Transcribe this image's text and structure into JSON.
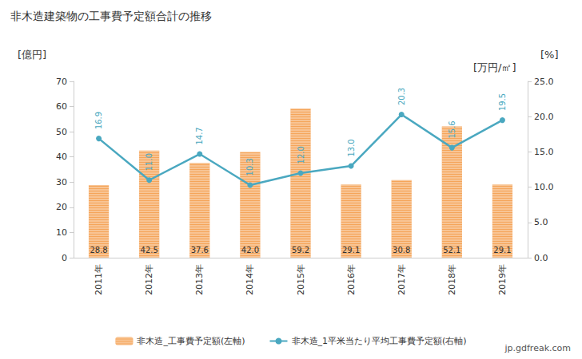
{
  "chart_data": {
    "type": "bar",
    "title": "非木造建築物の工事費予定額合計の推移",
    "y_label": "[億円]",
    "y2_label": "[万円/㎡]",
    "annotations": [
      "[%]",
      "jp.gdfreak.com"
    ],
    "categories": [
      "2011年",
      "2012年",
      "2013年",
      "2014年",
      "2015年",
      "2016年",
      "2017年",
      "2018年",
      "2019年"
    ],
    "series": [
      {
        "name": "非木造_工事費予定額(左軸)",
        "type": "bar",
        "color": "#f5a55a",
        "values": [
          28.8,
          42.5,
          37.6,
          42.0,
          59.2,
          29.1,
          30.8,
          52.1,
          29.1
        ],
        "value_labels": [
          "28.8",
          "42.5",
          "37.6",
          "42.0",
          "59.2",
          "29.1",
          "30.8",
          "52.1",
          "29.1"
        ]
      },
      {
        "name": "非木造_1平米当たり平均工事費予定額(右軸)",
        "type": "line",
        "axis": "y2",
        "color": "#4aa8c0",
        "marker": "circle",
        "values": [
          16.9,
          11.0,
          14.7,
          10.3,
          12.0,
          13.0,
          20.3,
          15.6,
          19.5
        ],
        "value_labels": [
          "16.9",
          "11.0",
          "14.7",
          "10.3",
          "12.0",
          "13.0",
          "20.3",
          "15.6",
          "19.5"
        ]
      }
    ],
    "ylim": [
      0,
      70
    ],
    "yticks": [
      0,
      10,
      20,
      30,
      40,
      50,
      60,
      70
    ],
    "y2lim": [
      0,
      25
    ],
    "y2ticks": [
      {
        "value": 0,
        "label": "0.0"
      },
      {
        "value": 5,
        "label": "5.0"
      },
      {
        "value": 10,
        "label": "10.0"
      },
      {
        "value": 15,
        "label": "15.0"
      },
      {
        "value": 20,
        "label": "20.0"
      },
      {
        "value": 25,
        "label": "25.0"
      }
    ],
    "grid": false,
    "legend": "bottom",
    "data_labels": true
  }
}
